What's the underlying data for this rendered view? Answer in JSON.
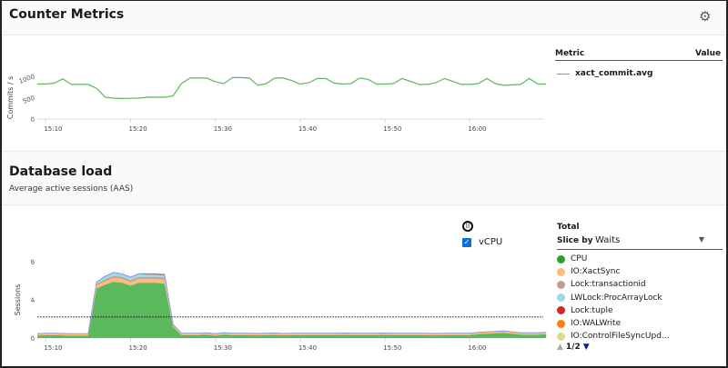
{
  "counter": {
    "title": "Counter Metrics",
    "settings_icon": "gear-icon",
    "legend": {
      "metric_header": "Metric",
      "value_header": "Value",
      "items": [
        {
          "label": "xact_commit.avg",
          "color": "#5cb85c"
        }
      ]
    }
  },
  "dbload": {
    "title": "Database load",
    "subtitle": "Average active sessions (AAS)",
    "pause_icon": "pause-icon",
    "vcpu_label": "vCPU",
    "vcpu_checked": true,
    "legend": {
      "total": "Total",
      "slice_by_label": "Slice by",
      "slice_by_value": "Waits",
      "items": [
        {
          "label": "CPU",
          "color": "#2ca02c"
        },
        {
          "label": "IO:XactSync",
          "color": "#ffbb78"
        },
        {
          "label": "Lock:transactionid",
          "color": "#c49c94"
        },
        {
          "label": "LWLock:ProcArrayLock",
          "color": "#9edae5"
        },
        {
          "label": "Lock:tuple",
          "color": "#d62728"
        },
        {
          "label": "IO:WALWrite",
          "color": "#ff7f0e"
        },
        {
          "label": "IO:ControlFileSyncUpd...",
          "color": "#dbdb8d"
        }
      ],
      "page": "1/2"
    }
  },
  "chart_data": [
    {
      "type": "line",
      "ylabel": "Commits / s",
      "ylim": [
        0,
        1000
      ],
      "yticks": [
        "0",
        "500",
        "1000"
      ],
      "xticks": [
        "15:10",
        "15:20",
        "15:30",
        "15:40",
        "15:50",
        "16:00"
      ],
      "x_start": "15:09",
      "x_step_minutes": 1,
      "series": [
        {
          "name": "xact_commit.avg",
          "color": "#5cb85c",
          "values": [
            820,
            820,
            840,
            940,
            810,
            810,
            810,
            720,
            510,
            490,
            480,
            485,
            490,
            510,
            510,
            510,
            540,
            830,
            960,
            960,
            960,
            870,
            830,
            970,
            970,
            960,
            790,
            830,
            960,
            960,
            900,
            820,
            850,
            950,
            950,
            840,
            820,
            830,
            960,
            930,
            820,
            820,
            830,
            950,
            880,
            810,
            810,
            850,
            950,
            880,
            810,
            810,
            830,
            950,
            830,
            790,
            800,
            810,
            950,
            820,
            820
          ]
        }
      ]
    },
    {
      "type": "area",
      "stacked": true,
      "ylabel": "Sessions",
      "ylim": [
        0,
        8
      ],
      "yticks": [
        "0",
        "4",
        "8"
      ],
      "xticks": [
        "15:10",
        "15:20",
        "15:30",
        "15:40",
        "15:50",
        "16:00"
      ],
      "x_start": "15:09",
      "x_step_minutes": 1,
      "vcpu_line": 2.2,
      "series": [
        {
          "name": "CPU",
          "color": "#5cb85c",
          "values": [
            0.25,
            0.3,
            0.3,
            0.28,
            0.25,
            0.25,
            0.25,
            5.2,
            5.6,
            5.9,
            5.8,
            5.5,
            5.8,
            5.8,
            5.8,
            5.7,
            1.2,
            0.3,
            0.3,
            0.3,
            0.35,
            0.25,
            0.35,
            0.3,
            0.3,
            0.3,
            0.28,
            0.3,
            0.32,
            0.28,
            0.3,
            0.3,
            0.3,
            0.3,
            0.3,
            0.3,
            0.32,
            0.3,
            0.3,
            0.3,
            0.3,
            0.32,
            0.3,
            0.3,
            0.3,
            0.3,
            0.3,
            0.28,
            0.3,
            0.3,
            0.3,
            0.3,
            0.4,
            0.45,
            0.5,
            0.55,
            0.45,
            0.35,
            0.35,
            0.35,
            0.4
          ]
        },
        {
          "name": "IO:XactSync",
          "color": "#ffbb78",
          "values": [
            0.15,
            0.15,
            0.15,
            0.15,
            0.15,
            0.15,
            0.15,
            0.3,
            0.35,
            0.4,
            0.4,
            0.35,
            0.4,
            0.4,
            0.4,
            0.4,
            0.15,
            0.15,
            0.15,
            0.15,
            0.15,
            0.15,
            0.15,
            0.15,
            0.15,
            0.15,
            0.15,
            0.15,
            0.15,
            0.15,
            0.15,
            0.15,
            0.15,
            0.15,
            0.15,
            0.15,
            0.15,
            0.15,
            0.15,
            0.15,
            0.15,
            0.15,
            0.15,
            0.15,
            0.15,
            0.15,
            0.15,
            0.15,
            0.15,
            0.15,
            0.15,
            0.15,
            0.15,
            0.15,
            0.15,
            0.15,
            0.15,
            0.15,
            0.15,
            0.15,
            0.15
          ]
        },
        {
          "name": "Lock:transactionid",
          "color": "#c49c94",
          "values": [
            0.02,
            0.02,
            0.02,
            0.02,
            0.02,
            0.02,
            0.02,
            0.15,
            0.2,
            0.2,
            0.2,
            0.2,
            0.2,
            0.2,
            0.2,
            0.2,
            0.05,
            0.02,
            0.02,
            0.02,
            0.02,
            0.02,
            0.02,
            0.02,
            0.02,
            0.02,
            0.02,
            0.02,
            0.02,
            0.02,
            0.02,
            0.02,
            0.02,
            0.02,
            0.02,
            0.02,
            0.02,
            0.02,
            0.02,
            0.02,
            0.02,
            0.02,
            0.02,
            0.02,
            0.02,
            0.02,
            0.02,
            0.02,
            0.02,
            0.02,
            0.02,
            0.02,
            0.02,
            0.02,
            0.02,
            0.02,
            0.02,
            0.02,
            0.02,
            0.02,
            0.02
          ]
        },
        {
          "name": "LWLock:ProcArrayLock",
          "color": "#9edae5",
          "values": [
            0.03,
            0.03,
            0.03,
            0.03,
            0.03,
            0.03,
            0.03,
            0.2,
            0.3,
            0.35,
            0.3,
            0.3,
            0.3,
            0.25,
            0.25,
            0.3,
            0.05,
            0.03,
            0.03,
            0.03,
            0.03,
            0.03,
            0.03,
            0.03,
            0.03,
            0.03,
            0.03,
            0.03,
            0.03,
            0.03,
            0.03,
            0.03,
            0.03,
            0.03,
            0.03,
            0.03,
            0.03,
            0.03,
            0.03,
            0.03,
            0.03,
            0.03,
            0.03,
            0.03,
            0.03,
            0.03,
            0.03,
            0.03,
            0.03,
            0.03,
            0.03,
            0.03,
            0.03,
            0.03,
            0.03,
            0.03,
            0.03,
            0.03,
            0.03,
            0.03,
            0.03
          ]
        },
        {
          "name": "Lock:tuple",
          "color": "#d62728",
          "values": [
            0,
            0,
            0,
            0,
            0,
            0,
            0,
            0.02,
            0.03,
            0.03,
            0.03,
            0.03,
            0.05,
            0.08,
            0.08,
            0.08,
            0,
            0,
            0,
            0,
            0,
            0,
            0,
            0,
            0,
            0,
            0,
            0,
            0,
            0,
            0,
            0,
            0,
            0,
            0,
            0,
            0,
            0,
            0,
            0,
            0,
            0,
            0,
            0,
            0,
            0,
            0,
            0,
            0,
            0,
            0,
            0,
            0,
            0,
            0,
            0,
            0,
            0,
            0,
            0,
            0
          ]
        }
      ]
    }
  ]
}
